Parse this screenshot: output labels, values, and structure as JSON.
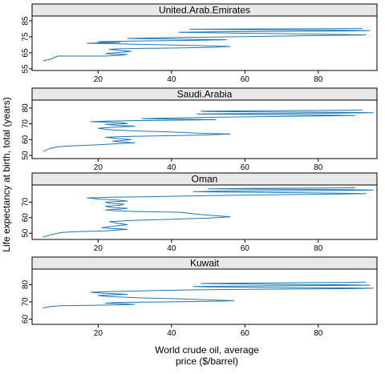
{
  "chart_data": {
    "type": "line",
    "layout": "trellis",
    "xlabel_lines": [
      "World crude oil, average",
      "price ($/barrel)"
    ],
    "ylabel": "Life expectancy at birth, total (years)",
    "xlim": [
      2,
      96
    ],
    "x_ticks": [
      20,
      40,
      60,
      80
    ],
    "line_color": "#1f77b4",
    "strip_color": "#e8e8e8",
    "panels": [
      {
        "name": "United.Arab.Emirates",
        "ylim": [
          54,
          88
        ],
        "y_ticks": [
          55,
          65,
          75,
          85
        ],
        "points": [
          [
            5,
            60
          ],
          [
            7,
            61
          ],
          [
            9,
            63
          ],
          [
            14,
            63
          ],
          [
            22,
            63
          ],
          [
            26,
            63.5
          ],
          [
            28,
            64
          ],
          [
            25,
            64.2
          ],
          [
            22,
            64.5
          ],
          [
            24,
            65
          ],
          [
            27,
            65.5
          ],
          [
            29,
            66
          ],
          [
            26,
            66.5
          ],
          [
            24,
            67
          ],
          [
            23,
            67.2
          ],
          [
            25,
            67.5
          ],
          [
            32,
            67.8
          ],
          [
            40,
            68
          ],
          [
            52,
            68.5
          ],
          [
            56,
            69
          ],
          [
            48,
            69.5
          ],
          [
            38,
            70
          ],
          [
            28,
            70.5
          ],
          [
            22,
            70.8
          ],
          [
            17,
            71
          ],
          [
            21,
            71.3
          ],
          [
            26,
            71.5
          ],
          [
            22,
            71.8
          ],
          [
            20,
            72
          ],
          [
            25,
            72.2
          ],
          [
            30,
            72.4
          ],
          [
            38,
            72.6
          ],
          [
            46,
            72.8
          ],
          [
            55,
            73.2
          ],
          [
            45,
            73.5
          ],
          [
            35,
            73.8
          ],
          [
            28,
            74
          ],
          [
            34,
            74.3
          ],
          [
            42,
            74.6
          ],
          [
            52,
            74.9
          ],
          [
            65,
            75.3
          ],
          [
            80,
            75.8
          ],
          [
            93,
            76.2
          ],
          [
            82,
            76.6
          ],
          [
            70,
            77
          ],
          [
            58,
            77.3
          ],
          [
            49,
            77.6
          ],
          [
            42,
            77.9
          ],
          [
            50,
            78.1
          ],
          [
            62,
            78.3
          ],
          [
            76,
            78.5
          ],
          [
            89,
            78.7
          ],
          [
            94,
            78.9
          ],
          [
            86,
            79.1
          ],
          [
            72,
            79.3
          ],
          [
            58,
            79.5
          ],
          [
            48,
            79.7
          ],
          [
            45,
            79.8
          ],
          [
            55,
            79.9
          ],
          [
            70,
            80
          ],
          [
            84,
            80.1
          ],
          [
            92,
            80.2
          ]
        ]
      },
      {
        "name": "Saudi.Arabia",
        "ylim": [
          48,
          85
        ],
        "y_ticks": [
          50,
          60,
          70,
          80
        ],
        "points": [
          [
            5,
            52.5
          ],
          [
            6,
            53.5
          ],
          [
            7,
            54.5
          ],
          [
            9,
            55.5
          ],
          [
            12,
            56
          ],
          [
            18,
            56.5
          ],
          [
            22,
            57
          ],
          [
            26,
            57.5
          ],
          [
            30,
            58
          ],
          [
            26,
            58.5
          ],
          [
            24,
            59
          ],
          [
            27,
            59.5
          ],
          [
            29,
            60
          ],
          [
            26,
            60.5
          ],
          [
            24,
            61
          ],
          [
            22,
            61.5
          ],
          [
            28,
            62
          ],
          [
            40,
            62.5
          ],
          [
            50,
            63
          ],
          [
            56,
            63.5
          ],
          [
            48,
            64
          ],
          [
            38,
            65
          ],
          [
            30,
            65.5
          ],
          [
            25,
            66
          ],
          [
            22,
            66.5
          ],
          [
            20,
            67.2
          ],
          [
            24,
            67.8
          ],
          [
            30,
            68.5
          ],
          [
            26,
            69
          ],
          [
            22,
            69.6
          ],
          [
            28,
            70.2
          ],
          [
            26,
            70.8
          ],
          [
            18,
            71.3
          ],
          [
            22,
            71.7
          ],
          [
            30,
            72
          ],
          [
            40,
            72.3
          ],
          [
            52,
            72.6
          ],
          [
            40,
            73
          ],
          [
            32,
            73.3
          ],
          [
            38,
            73.6
          ],
          [
            48,
            74
          ],
          [
            60,
            74.4
          ],
          [
            75,
            74.8
          ],
          [
            90,
            75.2
          ],
          [
            82,
            75.5
          ],
          [
            70,
            75.8
          ],
          [
            58,
            76
          ],
          [
            47,
            76.2
          ],
          [
            55,
            76.4
          ],
          [
            70,
            76.6
          ],
          [
            85,
            76.8
          ],
          [
            95,
            77
          ],
          [
            90,
            77.2
          ],
          [
            75,
            77.4
          ],
          [
            62,
            77.6
          ],
          [
            50,
            77.8
          ],
          [
            48,
            78
          ],
          [
            60,
            78.2
          ],
          [
            75,
            78.4
          ],
          [
            88,
            78.6
          ],
          [
            92,
            78.8
          ]
        ]
      },
      {
        "name": "Oman",
        "ylim": [
          46,
          81
        ],
        "y_ticks": [
          50,
          60,
          70
        ],
        "points": [
          [
            5,
            47.5
          ],
          [
            7,
            49
          ],
          [
            10,
            50.5
          ],
          [
            14,
            51
          ],
          [
            22,
            51.5
          ],
          [
            28,
            52.5
          ],
          [
            24,
            53
          ],
          [
            21,
            53.5
          ],
          [
            24,
            54.5
          ],
          [
            28,
            55.5
          ],
          [
            25,
            56.5
          ],
          [
            23,
            57.5
          ],
          [
            30,
            58.3
          ],
          [
            40,
            59
          ],
          [
            50,
            59.7
          ],
          [
            56,
            60.5
          ],
          [
            48,
            62
          ],
          [
            42,
            63.5
          ],
          [
            30,
            64
          ],
          [
            24,
            64.5
          ],
          [
            22,
            65
          ],
          [
            26,
            65.5
          ],
          [
            28,
            66
          ],
          [
            24,
            66.5
          ],
          [
            22,
            67.3
          ],
          [
            26,
            68
          ],
          [
            27,
            68.7
          ],
          [
            23,
            69.3
          ],
          [
            22,
            70
          ],
          [
            28,
            70.7
          ],
          [
            25,
            71.3
          ],
          [
            20,
            72
          ],
          [
            17,
            72.7
          ],
          [
            24,
            73.1
          ],
          [
            34,
            73.5
          ],
          [
            44,
            73.9
          ],
          [
            54,
            74.3
          ],
          [
            64,
            74.6
          ],
          [
            74,
            74.9
          ],
          [
            86,
            75.2
          ],
          [
            93,
            75.5
          ],
          [
            84,
            75.8
          ],
          [
            70,
            76.1
          ],
          [
            56,
            76.4
          ],
          [
            46,
            76.7
          ],
          [
            52,
            77
          ],
          [
            66,
            77.2
          ],
          [
            80,
            77.4
          ],
          [
            92,
            77.6
          ],
          [
            95,
            77.8
          ],
          [
            86,
            78
          ],
          [
            72,
            78.2
          ],
          [
            60,
            78.4
          ],
          [
            50,
            78.6
          ],
          [
            62,
            78.8
          ],
          [
            78,
            79
          ],
          [
            90,
            79.2
          ]
        ]
      },
      {
        "name": "Kuwait",
        "ylim": [
          57,
          89
        ],
        "y_ticks": [
          60,
          70,
          80
        ],
        "points": [
          [
            5,
            66.5
          ],
          [
            7,
            67.3
          ],
          [
            10,
            67.8
          ],
          [
            18,
            68
          ],
          [
            26,
            68.3
          ],
          [
            30,
            68.6
          ],
          [
            26,
            69
          ],
          [
            22,
            69.3
          ],
          [
            25,
            69.6
          ],
          [
            30,
            69.8
          ],
          [
            42,
            70.1
          ],
          [
            52,
            70.4
          ],
          [
            57,
            70.7
          ],
          [
            50,
            71.2
          ],
          [
            42,
            71.8
          ],
          [
            32,
            72.3
          ],
          [
            26,
            72.8
          ],
          [
            22,
            73.2
          ],
          [
            20,
            73.7
          ],
          [
            24,
            74.1
          ],
          [
            28,
            74.4
          ],
          [
            24,
            74.8
          ],
          [
            20,
            75.2
          ],
          [
            18,
            75.6
          ],
          [
            22,
            75.9
          ],
          [
            28,
            76.2
          ],
          [
            34,
            76.5
          ],
          [
            42,
            76.8
          ],
          [
            50,
            77.1
          ],
          [
            62,
            77.3
          ],
          [
            76,
            77.5
          ],
          [
            90,
            77.7
          ],
          [
            95,
            77.9
          ],
          [
            86,
            78.1
          ],
          [
            72,
            78.3
          ],
          [
            60,
            78.5
          ],
          [
            50,
            78.7
          ],
          [
            46,
            78.9
          ],
          [
            56,
            79.1
          ],
          [
            68,
            79.3
          ],
          [
            82,
            79.5
          ],
          [
            94,
            79.7
          ],
          [
            88,
            79.9
          ],
          [
            74,
            80.1
          ],
          [
            62,
            80.3
          ],
          [
            52,
            80.5
          ],
          [
            48,
            80.7
          ],
          [
            60,
            80.9
          ],
          [
            74,
            81.1
          ],
          [
            88,
            81.3
          ],
          [
            93,
            81.5
          ]
        ]
      }
    ]
  }
}
